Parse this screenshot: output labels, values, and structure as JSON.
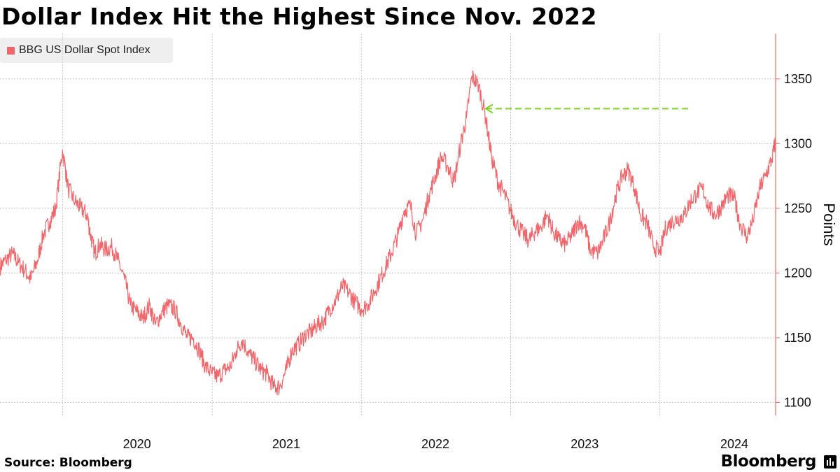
{
  "title": "Dollar Index Hit the Highest Since Nov. 2022",
  "legend": {
    "label": "BBG US Dollar Spot Index",
    "color": "#f0666a"
  },
  "source": "Source: Bloomberg",
  "brand": "Bloomberg",
  "colors": {
    "line": "#f0666a",
    "annotation": "#7cd323",
    "axis": "#f0666a",
    "grid": "#c8c8c8"
  },
  "chart_data": {
    "type": "line",
    "title": "Dollar Index Hit the Highest Since Nov. 2022",
    "ylabel": "Points",
    "xlabel": "",
    "ylim": [
      1090,
      1385
    ],
    "xlim": [
      "2019-08-01",
      "2024-10-10"
    ],
    "yticks": [
      1100,
      1150,
      1200,
      1250,
      1300,
      1350
    ],
    "xticks": [
      "2020",
      "2021",
      "2022",
      "2023",
      "2024"
    ],
    "grid": true,
    "legend_position": "top-left",
    "series": [
      {
        "name": "BBG US Dollar Spot Index",
        "x": [
          "2019-08-01",
          "2019-08-15",
          "2019-09-01",
          "2019-09-15",
          "2019-10-01",
          "2019-10-15",
          "2019-11-01",
          "2019-11-15",
          "2019-12-01",
          "2019-12-15",
          "2020-01-01",
          "2020-01-15",
          "2020-02-01",
          "2020-02-15",
          "2020-03-01",
          "2020-03-09",
          "2020-03-20",
          "2020-04-01",
          "2020-04-15",
          "2020-05-01",
          "2020-05-15",
          "2020-06-01",
          "2020-06-15",
          "2020-07-01",
          "2020-07-15",
          "2020-08-01",
          "2020-08-15",
          "2020-09-01",
          "2020-09-15",
          "2020-10-01",
          "2020-10-15",
          "2020-11-01",
          "2020-11-15",
          "2020-12-01",
          "2020-12-15",
          "2021-01-01",
          "2021-01-15",
          "2021-02-01",
          "2021-02-15",
          "2021-03-01",
          "2021-03-15",
          "2021-04-01",
          "2021-04-15",
          "2021-05-01",
          "2021-05-15",
          "2021-06-01",
          "2021-06-15",
          "2021-07-01",
          "2021-07-15",
          "2021-08-01",
          "2021-08-15",
          "2021-09-01",
          "2021-09-15",
          "2021-10-01",
          "2021-10-15",
          "2021-11-01",
          "2021-11-15",
          "2021-12-01",
          "2021-12-15",
          "2022-01-01",
          "2022-01-15",
          "2022-02-01",
          "2022-02-15",
          "2022-03-01",
          "2022-03-15",
          "2022-04-01",
          "2022-04-15",
          "2022-05-01",
          "2022-05-15",
          "2022-06-01",
          "2022-06-15",
          "2022-07-01",
          "2022-07-15",
          "2022-08-01",
          "2022-08-15",
          "2022-09-01",
          "2022-09-15",
          "2022-09-28",
          "2022-10-15",
          "2022-11-01",
          "2022-11-15",
          "2022-12-01",
          "2022-12-15",
          "2023-01-01",
          "2023-01-15",
          "2023-02-01",
          "2023-02-15",
          "2023-03-01",
          "2023-03-15",
          "2023-04-01",
          "2023-04-15",
          "2023-05-01",
          "2023-05-15",
          "2023-06-01",
          "2023-06-15",
          "2023-07-01",
          "2023-07-14",
          "2023-08-01",
          "2023-08-15",
          "2023-09-01",
          "2023-09-15",
          "2023-10-01",
          "2023-10-15",
          "2023-11-01",
          "2023-11-15",
          "2023-12-01",
          "2023-12-15",
          "2024-01-01",
          "2024-01-15",
          "2024-02-01",
          "2024-02-15",
          "2024-03-01",
          "2024-03-15",
          "2024-04-01",
          "2024-04-15",
          "2024-05-01",
          "2024-05-15",
          "2024-06-01",
          "2024-06-15",
          "2024-07-01",
          "2024-07-15",
          "2024-08-01",
          "2024-08-15",
          "2024-09-01",
          "2024-09-15",
          "2024-10-01",
          "2024-10-10"
        ],
        "y": [
          1205,
          1210,
          1215,
          1208,
          1202,
          1195,
          1210,
          1230,
          1240,
          1250,
          1295,
          1265,
          1255,
          1250,
          1245,
          1230,
          1215,
          1222,
          1218,
          1220,
          1210,
          1195,
          1175,
          1170,
          1165,
          1175,
          1160,
          1170,
          1175,
          1172,
          1162,
          1150,
          1150,
          1140,
          1128,
          1122,
          1120,
          1125,
          1128,
          1140,
          1148,
          1138,
          1132,
          1125,
          1122,
          1112,
          1112,
          1125,
          1140,
          1145,
          1152,
          1155,
          1160,
          1163,
          1172,
          1180,
          1190,
          1185,
          1178,
          1172,
          1175,
          1185,
          1195,
          1205,
          1215,
          1230,
          1248,
          1252,
          1230,
          1242,
          1260,
          1275,
          1290,
          1282,
          1270,
          1300,
          1320,
          1352,
          1345,
          1320,
          1290,
          1270,
          1262,
          1248,
          1238,
          1230,
          1225,
          1232,
          1235,
          1245,
          1232,
          1225,
          1222,
          1230,
          1240,
          1236,
          1218,
          1215,
          1225,
          1240,
          1260,
          1275,
          1280,
          1265,
          1245,
          1238,
          1222,
          1215,
          1235,
          1240,
          1242,
          1245,
          1255,
          1262,
          1265,
          1250,
          1245,
          1252,
          1260,
          1258,
          1238,
          1228,
          1240,
          1265,
          1275,
          1288,
          1302
        ]
      }
    ],
    "annotations": [
      {
        "type": "dashed-arrow",
        "x_from": "2024-03-10",
        "x_to": "2022-11-01",
        "y": 1327,
        "color": "#7cd323"
      }
    ]
  }
}
